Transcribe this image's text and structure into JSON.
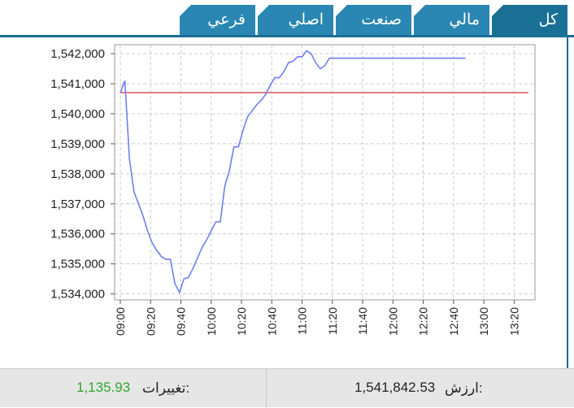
{
  "tabs": [
    {
      "label": "كل",
      "active": true
    },
    {
      "label": "مالي",
      "active": false
    },
    {
      "label": "صنعت",
      "active": false
    },
    {
      "label": "اصلي",
      "active": false
    },
    {
      "label": "فرعي",
      "active": false
    }
  ],
  "footer": {
    "value_label": "ارزش:",
    "value": "1,541,842.53",
    "change_label": "تغييرات:",
    "change": "1,135.93"
  },
  "colors": {
    "tab": "#2a86b2",
    "tab_active": "#1a6f95",
    "series": "#6f7ff0",
    "reference": "#e05555",
    "change_positive": "#2ea82e"
  },
  "chart_data": {
    "type": "line",
    "xlim": [
      "09:00",
      "13:30"
    ],
    "ylim": [
      1533800,
      1542300
    ],
    "grid": true,
    "x_ticks": [
      "09:00",
      "09:20",
      "09:40",
      "10:00",
      "10:20",
      "10:40",
      "11:00",
      "11:20",
      "11:40",
      "12:00",
      "12:20",
      "12:40",
      "13:00",
      "13:20"
    ],
    "y_ticks": [
      "1,534,000",
      "1,535,000",
      "1,536,000",
      "1,537,000",
      "1,538,000",
      "1,539,000",
      "1,540,000",
      "1,541,000",
      "1,542,000"
    ],
    "y_tick_values": [
      1534000,
      1535000,
      1536000,
      1537000,
      1538000,
      1539000,
      1540000,
      1541000,
      1542000
    ],
    "reference_line": 1540707,
    "series": [
      {
        "x": [
          "09:00",
          "09:03",
          "09:06",
          "09:09",
          "09:12",
          "09:15",
          "09:18",
          "09:21",
          "09:24",
          "09:27",
          "09:30",
          "09:33",
          "09:36",
          "09:39",
          "09:42",
          "09:45",
          "09:48",
          "09:51",
          "09:54",
          "09:57",
          "10:00",
          "10:03",
          "10:06",
          "10:09",
          "10:12",
          "10:15",
          "10:18",
          "10:21",
          "10:24",
          "10:27",
          "10:30",
          "10:33",
          "10:36",
          "10:39",
          "10:42",
          "10:45",
          "10:48",
          "10:51",
          "10:54",
          "10:57",
          "11:00",
          "11:03",
          "11:06",
          "11:09",
          "11:12",
          "11:15",
          "11:18",
          "11:21",
          "11:24",
          "11:27",
          "11:30",
          "11:33",
          "11:36",
          "11:39",
          "11:42",
          "11:45",
          "11:48",
          "11:51",
          "11:54",
          "11:57",
          "12:00",
          "12:03",
          "12:06",
          "12:09",
          "12:12",
          "12:15",
          "12:18",
          "12:21",
          "12:24",
          "12:27",
          "12:30",
          "12:33",
          "12:36",
          "12:39",
          "12:42",
          "12:45",
          "12:48"
        ],
        "values": [
          1540707,
          1541100,
          1538500,
          1537400,
          1537000,
          1536600,
          1536100,
          1535700,
          1535450,
          1535250,
          1535150,
          1535150,
          1534350,
          1534050,
          1534500,
          1534550,
          1534850,
          1535200,
          1535550,
          1535800,
          1536100,
          1536400,
          1536400,
          1537600,
          1538100,
          1538900,
          1538900,
          1539450,
          1539900,
          1540100,
          1540300,
          1540450,
          1540650,
          1540950,
          1541200,
          1541200,
          1541400,
          1541700,
          1541750,
          1541900,
          1541900,
          1542100,
          1542000,
          1541700,
          1541500,
          1541600,
          1541850,
          1541850,
          1541850,
          1541850,
          1541850,
          1541850,
          1541850,
          1541850,
          1541850,
          1541850,
          1541850,
          1541850,
          1541850,
          1541850,
          1541850,
          1541850,
          1541850,
          1541850,
          1541850,
          1541850,
          1541850,
          1541850,
          1541850,
          1541850,
          1541850,
          1541850,
          1541850,
          1541850,
          1541850,
          1541850,
          1541850
        ]
      }
    ]
  }
}
